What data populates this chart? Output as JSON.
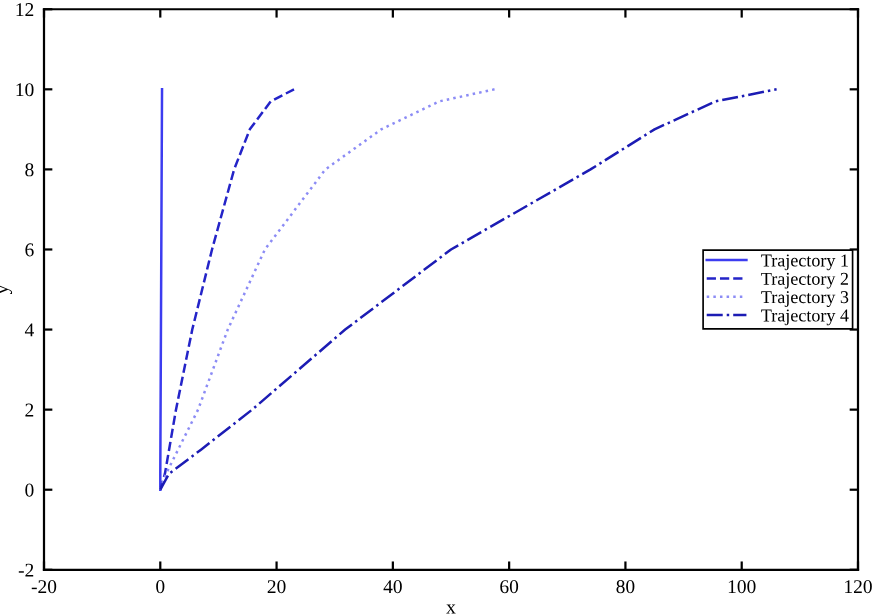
{
  "chart_data": {
    "type": "line",
    "xlabel": "x",
    "ylabel": "y",
    "xlim": [
      -20,
      120
    ],
    "xticks": [
      -20,
      0,
      20,
      40,
      60,
      80,
      100,
      120
    ],
    "ylim": [
      -2,
      12
    ],
    "yticks": [
      -2,
      0,
      2,
      4,
      6,
      8,
      10,
      12
    ],
    "grid": false,
    "legend": "right",
    "marker": "none",
    "series": [
      {
        "name": "Trajectory 1",
        "color": "#3c3cf0",
        "line_style": "solid",
        "x": [
          0,
          0,
          0.3
        ],
        "values": [
          0,
          0.4,
          10
        ]
      },
      {
        "name": "Trajectory 2",
        "color": "#2424c8",
        "line_style": "dashed",
        "x": [
          0,
          0.8,
          2.7,
          5.5,
          8.9,
          12.7,
          15.4,
          19,
          23
        ],
        "values": [
          0,
          0.4,
          2,
          4,
          6,
          8,
          9,
          9.7,
          10
        ]
      },
      {
        "name": "Trajectory 3",
        "color": "#8c8cf5",
        "line_style": "dotted",
        "x": [
          0,
          1,
          6.5,
          11.6,
          18,
          28.4,
          38,
          48,
          57.5
        ],
        "values": [
          0,
          0.4,
          2,
          4,
          6,
          8,
          9,
          9.7,
          10
        ]
      },
      {
        "name": "Trajectory 4",
        "color": "#1c1cb4",
        "line_style": "dashdot",
        "x": [
          0,
          1.5,
          7,
          15.8,
          31.8,
          50,
          74,
          85,
          95.5,
          106
        ],
        "values": [
          0,
          0.4,
          1,
          2,
          4,
          6,
          8,
          9,
          9.7,
          10
        ]
      }
    ]
  }
}
